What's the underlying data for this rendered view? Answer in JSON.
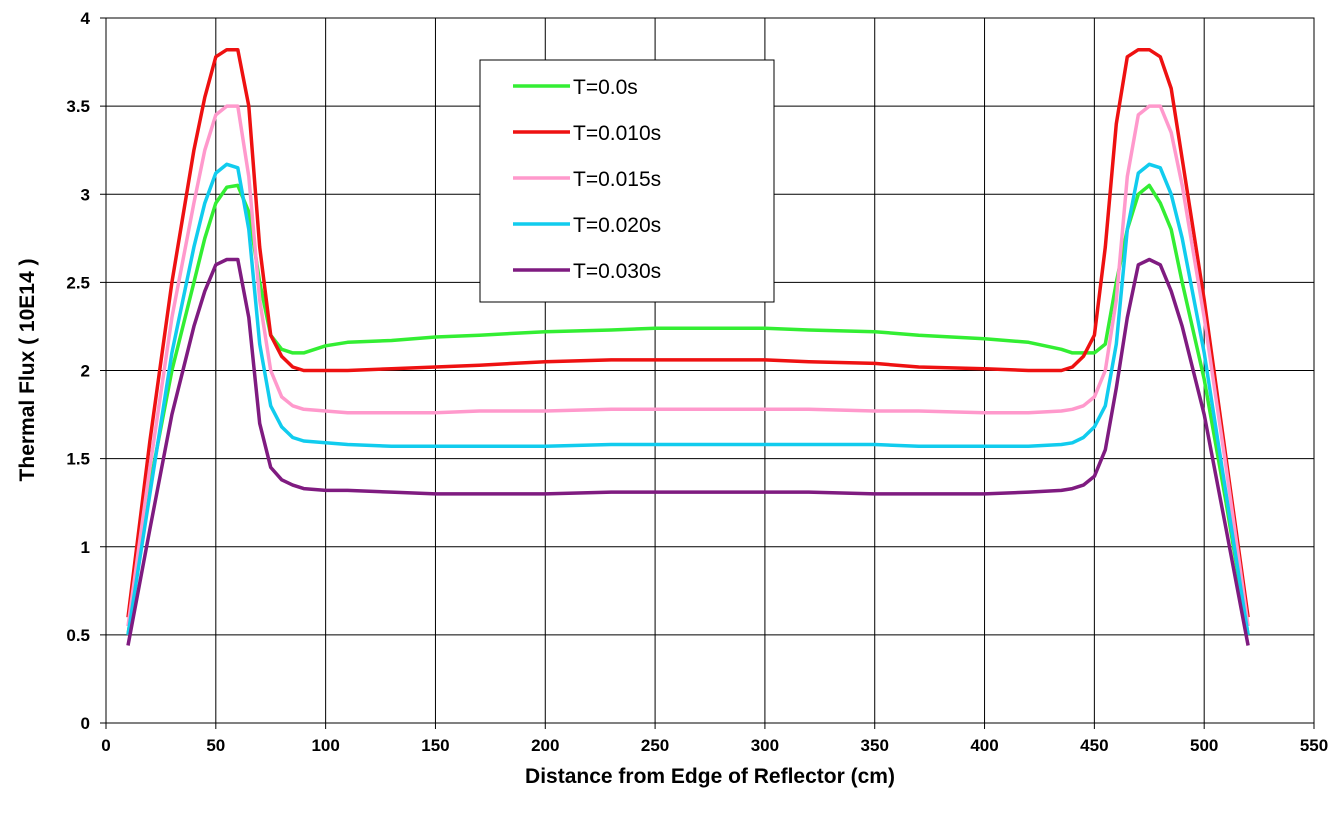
{
  "chart_data": {
    "type": "line",
    "title": "",
    "xlabel": "Distance from Edge of Reflector  (cm)",
    "ylabel": "Thermal Flux ( 10E14 )",
    "xlim": [
      0,
      550
    ],
    "ylim": [
      0,
      4
    ],
    "xticks": [
      0,
      50,
      100,
      150,
      200,
      250,
      300,
      350,
      400,
      450,
      500,
      550
    ],
    "yticks": [
      0,
      0.5,
      1,
      1.5,
      2,
      2.5,
      3,
      3.5,
      4
    ],
    "xtick_labels": [
      "0",
      "50",
      "100",
      "150",
      "200",
      "250",
      "300",
      "350",
      "400",
      "450",
      "500",
      "550"
    ],
    "ytick_labels": [
      "0",
      "0.5",
      "1",
      "1.5",
      "2",
      "2.5",
      "3",
      "3.5",
      "4"
    ],
    "grid": true,
    "legend_position": "top-center",
    "x": [
      10,
      20,
      30,
      40,
      45,
      50,
      55,
      60,
      65,
      70,
      75,
      80,
      85,
      90,
      100,
      110,
      130,
      150,
      170,
      200,
      230,
      250,
      270,
      300,
      320,
      350,
      370,
      400,
      420,
      435,
      440,
      445,
      450,
      455,
      460,
      465,
      470,
      475,
      480,
      485,
      490,
      500,
      510,
      520
    ],
    "series": [
      {
        "name": "T=0.0s",
        "color": "#33ee33",
        "values": [
          0.5,
          1.35,
          2.0,
          2.5,
          2.75,
          2.95,
          3.04,
          3.05,
          2.9,
          2.5,
          2.2,
          2.12,
          2.1,
          2.1,
          2.14,
          2.16,
          2.17,
          2.19,
          2.2,
          2.22,
          2.23,
          2.24,
          2.24,
          2.24,
          2.23,
          2.22,
          2.2,
          2.18,
          2.16,
          2.12,
          2.1,
          2.1,
          2.1,
          2.15,
          2.5,
          2.8,
          3.0,
          3.05,
          2.95,
          2.8,
          2.5,
          1.95,
          1.25,
          0.5
        ]
      },
      {
        "name": "T=0.010s",
        "color": "#ee1111",
        "values": [
          0.6,
          1.6,
          2.5,
          3.25,
          3.55,
          3.78,
          3.82,
          3.82,
          3.5,
          2.7,
          2.2,
          2.08,
          2.02,
          2.0,
          2.0,
          2.0,
          2.01,
          2.02,
          2.03,
          2.05,
          2.06,
          2.06,
          2.06,
          2.06,
          2.05,
          2.04,
          2.02,
          2.01,
          2.0,
          2.0,
          2.02,
          2.08,
          2.2,
          2.7,
          3.4,
          3.78,
          3.82,
          3.82,
          3.78,
          3.6,
          3.2,
          2.4,
          1.5,
          0.6
        ]
      },
      {
        "name": "T=0.015s",
        "color": "#ff99cc",
        "values": [
          0.55,
          1.45,
          2.3,
          2.95,
          3.25,
          3.45,
          3.5,
          3.5,
          3.1,
          2.4,
          2.0,
          1.85,
          1.8,
          1.78,
          1.77,
          1.76,
          1.76,
          1.76,
          1.77,
          1.77,
          1.78,
          1.78,
          1.78,
          1.78,
          1.78,
          1.77,
          1.77,
          1.76,
          1.76,
          1.77,
          1.78,
          1.8,
          1.85,
          2.0,
          2.4,
          3.1,
          3.45,
          3.5,
          3.5,
          3.35,
          3.05,
          2.3,
          1.45,
          0.55
        ]
      },
      {
        "name": "T=0.020s",
        "color": "#11ccee",
        "values": [
          0.5,
          1.3,
          2.1,
          2.7,
          2.95,
          3.12,
          3.17,
          3.15,
          2.8,
          2.15,
          1.8,
          1.68,
          1.62,
          1.6,
          1.59,
          1.58,
          1.57,
          1.57,
          1.57,
          1.57,
          1.58,
          1.58,
          1.58,
          1.58,
          1.58,
          1.58,
          1.57,
          1.57,
          1.57,
          1.58,
          1.59,
          1.62,
          1.68,
          1.8,
          2.15,
          2.8,
          3.12,
          3.17,
          3.15,
          3.0,
          2.75,
          2.1,
          1.3,
          0.5
        ]
      },
      {
        "name": "T=0.030s",
        "color": "#7f1b80",
        "values": [
          0.44,
          1.1,
          1.75,
          2.25,
          2.45,
          2.6,
          2.63,
          2.63,
          2.3,
          1.7,
          1.45,
          1.38,
          1.35,
          1.33,
          1.32,
          1.32,
          1.31,
          1.3,
          1.3,
          1.3,
          1.31,
          1.31,
          1.31,
          1.31,
          1.31,
          1.3,
          1.3,
          1.3,
          1.31,
          1.32,
          1.33,
          1.35,
          1.4,
          1.55,
          1.9,
          2.3,
          2.6,
          2.63,
          2.6,
          2.45,
          2.25,
          1.75,
          1.1,
          0.44
        ]
      }
    ]
  }
}
